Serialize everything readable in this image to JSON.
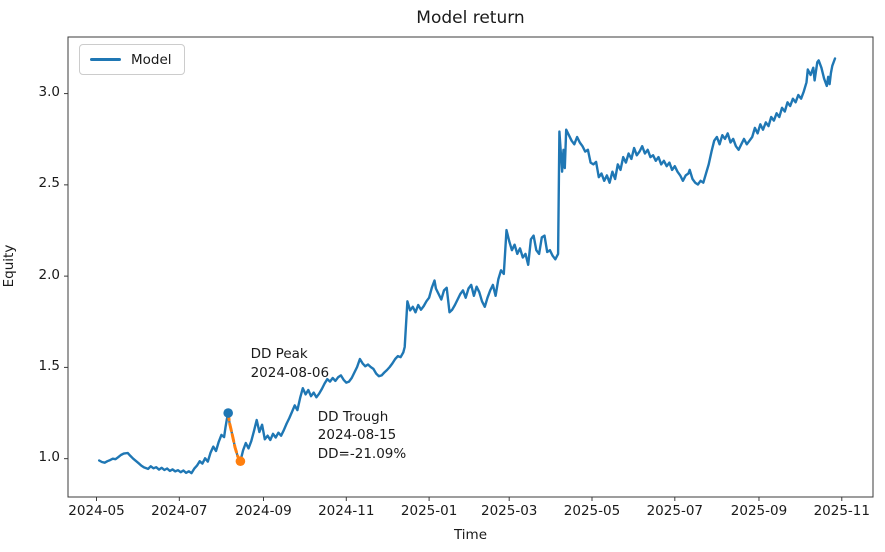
{
  "chart_data": {
    "type": "line",
    "title": "Model return",
    "xlabel": "Time",
    "ylabel": "Equity",
    "grid": false,
    "x_unit": "days since 2024-05-01",
    "xlim": [
      -21,
      572
    ],
    "ylim": [
      0.79,
      3.31
    ],
    "x_ticks": [
      {
        "d": 0,
        "label": "2024-05"
      },
      {
        "d": 61,
        "label": "2024-07"
      },
      {
        "d": 123,
        "label": "2024-09"
      },
      {
        "d": 184,
        "label": "2024-11"
      },
      {
        "d": 245,
        "label": "2025-01"
      },
      {
        "d": 304,
        "label": "2025-03"
      },
      {
        "d": 365,
        "label": "2025-05"
      },
      {
        "d": 426,
        "label": "2025-07"
      },
      {
        "d": 488,
        "label": "2025-09"
      },
      {
        "d": 549,
        "label": "2025-11"
      }
    ],
    "y_ticks": [
      {
        "v": 1.0,
        "label": "1.0"
      },
      {
        "v": 1.5,
        "label": "1.5"
      },
      {
        "v": 2.0,
        "label": "2.0"
      },
      {
        "v": 2.5,
        "label": "2.5"
      },
      {
        "v": 3.0,
        "label": "3.0"
      }
    ],
    "legend": {
      "position": "upper left",
      "entries": [
        {
          "label": "Model",
          "color": "#1f77b4"
        }
      ]
    },
    "colors": {
      "line": "#1f77b4",
      "drawdown": "#ff7f0e",
      "text": "#1a1a1a",
      "spine": "#3b3b3b"
    },
    "series": [
      {
        "name": "Model",
        "color": "#1f77b4",
        "points": [
          [
            2,
            0.99
          ],
          [
            4,
            0.982
          ],
          [
            6,
            0.978
          ],
          [
            8,
            0.986
          ],
          [
            10,
            0.992
          ],
          [
            12,
            1.0
          ],
          [
            14,
            0.997
          ],
          [
            16,
            1.008
          ],
          [
            18,
            1.02
          ],
          [
            20,
            1.028
          ],
          [
            23,
            1.031
          ],
          [
            25,
            1.015
          ],
          [
            27,
            1.0
          ],
          [
            29,
            0.988
          ],
          [
            31,
            0.975
          ],
          [
            33,
            0.962
          ],
          [
            35,
            0.952
          ],
          [
            38,
            0.944
          ],
          [
            40,
            0.958
          ],
          [
            42,
            0.947
          ],
          [
            44,
            0.953
          ],
          [
            46,
            0.94
          ],
          [
            48,
            0.95
          ],
          [
            50,
            0.938
          ],
          [
            52,
            0.946
          ],
          [
            54,
            0.933
          ],
          [
            56,
            0.941
          ],
          [
            58,
            0.93
          ],
          [
            60,
            0.937
          ],
          [
            62,
            0.926
          ],
          [
            64,
            0.935
          ],
          [
            66,
            0.922
          ],
          [
            68,
            0.931
          ],
          [
            70,
            0.921
          ],
          [
            72,
            0.945
          ],
          [
            74,
            0.962
          ],
          [
            76,
            0.986
          ],
          [
            78,
            0.973
          ],
          [
            80,
            1.002
          ],
          [
            82,
            0.984
          ],
          [
            84,
            1.032
          ],
          [
            86,
            1.066
          ],
          [
            88,
            1.042
          ],
          [
            90,
            1.092
          ],
          [
            92,
            1.13
          ],
          [
            94,
            1.118
          ],
          [
            95,
            1.172
          ],
          [
            96,
            1.214
          ],
          [
            97,
            1.25
          ],
          [
            98,
            1.196
          ],
          [
            100,
            1.131
          ],
          [
            102,
            1.062
          ],
          [
            104,
            1.013
          ],
          [
            106,
            0.986
          ],
          [
            108,
            1.046
          ],
          [
            110,
            1.086
          ],
          [
            112,
            1.056
          ],
          [
            114,
            1.096
          ],
          [
            116,
            1.152
          ],
          [
            118,
            1.212
          ],
          [
            120,
            1.146
          ],
          [
            122,
            1.186
          ],
          [
            124,
            1.106
          ],
          [
            126,
            1.126
          ],
          [
            128,
            1.102
          ],
          [
            130,
            1.136
          ],
          [
            132,
            1.116
          ],
          [
            134,
            1.142
          ],
          [
            136,
            1.126
          ],
          [
            138,
            1.156
          ],
          [
            140,
            1.192
          ],
          [
            142,
            1.222
          ],
          [
            144,
            1.256
          ],
          [
            146,
            1.292
          ],
          [
            148,
            1.266
          ],
          [
            150,
            1.332
          ],
          [
            152,
            1.386
          ],
          [
            154,
            1.352
          ],
          [
            156,
            1.376
          ],
          [
            158,
            1.342
          ],
          [
            160,
            1.362
          ],
          [
            162,
            1.336
          ],
          [
            164,
            1.356
          ],
          [
            166,
            1.382
          ],
          [
            168,
            1.412
          ],
          [
            170,
            1.436
          ],
          [
            172,
            1.422
          ],
          [
            174,
            1.442
          ],
          [
            176,
            1.426
          ],
          [
            178,
            1.446
          ],
          [
            180,
            1.456
          ],
          [
            182,
            1.432
          ],
          [
            184,
            1.416
          ],
          [
            186,
            1.422
          ],
          [
            188,
            1.442
          ],
          [
            190,
            1.472
          ],
          [
            192,
            1.502
          ],
          [
            194,
            1.546
          ],
          [
            196,
            1.522
          ],
          [
            198,
            1.506
          ],
          [
            200,
            1.516
          ],
          [
            202,
            1.502
          ],
          [
            204,
            1.492
          ],
          [
            206,
            1.466
          ],
          [
            208,
            1.452
          ],
          [
            210,
            1.456
          ],
          [
            212,
            1.472
          ],
          [
            214,
            1.486
          ],
          [
            216,
            1.502
          ],
          [
            218,
            1.522
          ],
          [
            220,
            1.546
          ],
          [
            222,
            1.562
          ],
          [
            224,
            1.556
          ],
          [
            226,
            1.582
          ],
          [
            227,
            1.612
          ],
          [
            229,
            1.862
          ],
          [
            231,
            1.812
          ],
          [
            233,
            1.832
          ],
          [
            235,
            1.802
          ],
          [
            237,
            1.842
          ],
          [
            239,
            1.816
          ],
          [
            241,
            1.836
          ],
          [
            243,
            1.862
          ],
          [
            245,
            1.882
          ],
          [
            247,
            1.936
          ],
          [
            249,
            1.976
          ],
          [
            250,
            1.932
          ],
          [
            252,
            1.902
          ],
          [
            254,
            1.872
          ],
          [
            256,
            1.922
          ],
          [
            258,
            1.936
          ],
          [
            260,
            1.802
          ],
          [
            262,
            1.816
          ],
          [
            264,
            1.842
          ],
          [
            266,
            1.872
          ],
          [
            268,
            1.902
          ],
          [
            270,
            1.922
          ],
          [
            272,
            1.882
          ],
          [
            274,
            1.932
          ],
          [
            276,
            1.952
          ],
          [
            278,
            1.892
          ],
          [
            280,
            1.942
          ],
          [
            282,
            1.912
          ],
          [
            284,
            1.862
          ],
          [
            286,
            1.832
          ],
          [
            288,
            1.882
          ],
          [
            290,
            1.922
          ],
          [
            292,
            1.952
          ],
          [
            294,
            1.892
          ],
          [
            296,
            1.982
          ],
          [
            298,
            2.032
          ],
          [
            300,
            2.012
          ],
          [
            302,
            2.252
          ],
          [
            304,
            2.192
          ],
          [
            306,
            2.142
          ],
          [
            308,
            2.172
          ],
          [
            310,
            2.122
          ],
          [
            312,
            2.152
          ],
          [
            314,
            2.102
          ],
          [
            316,
            2.122
          ],
          [
            318,
            2.062
          ],
          [
            320,
            2.202
          ],
          [
            322,
            2.222
          ],
          [
            324,
            2.142
          ],
          [
            326,
            2.122
          ],
          [
            328,
            2.212
          ],
          [
            330,
            2.222
          ],
          [
            332,
            2.132
          ],
          [
            334,
            2.142
          ],
          [
            336,
            2.112
          ],
          [
            338,
            2.092
          ],
          [
            340,
            2.122
          ],
          [
            341,
            2.792
          ],
          [
            343,
            2.572
          ],
          [
            344,
            2.692
          ],
          [
            345,
            2.592
          ],
          [
            346,
            2.802
          ],
          [
            348,
            2.772
          ],
          [
            350,
            2.742
          ],
          [
            352,
            2.722
          ],
          [
            354,
            2.762
          ],
          [
            356,
            2.732
          ],
          [
            358,
            2.712
          ],
          [
            360,
            2.682
          ],
          [
            362,
            2.692
          ],
          [
            364,
            2.622
          ],
          [
            366,
            2.612
          ],
          [
            368,
            2.626
          ],
          [
            370,
            2.542
          ],
          [
            372,
            2.562
          ],
          [
            374,
            2.522
          ],
          [
            376,
            2.552
          ],
          [
            378,
            2.512
          ],
          [
            380,
            2.572
          ],
          [
            382,
            2.532
          ],
          [
            384,
            2.612
          ],
          [
            386,
            2.582
          ],
          [
            388,
            2.652
          ],
          [
            390,
            2.622
          ],
          [
            392,
            2.672
          ],
          [
            394,
            2.642
          ],
          [
            396,
            2.702
          ],
          [
            398,
            2.662
          ],
          [
            400,
            2.682
          ],
          [
            402,
            2.712
          ],
          [
            404,
            2.672
          ],
          [
            406,
            2.692
          ],
          [
            408,
            2.652
          ],
          [
            410,
            2.662
          ],
          [
            412,
            2.632
          ],
          [
            414,
            2.652
          ],
          [
            416,
            2.612
          ],
          [
            418,
            2.632
          ],
          [
            420,
            2.602
          ],
          [
            422,
            2.622
          ],
          [
            424,
            2.582
          ],
          [
            426,
            2.602
          ],
          [
            428,
            2.572
          ],
          [
            430,
            2.552
          ],
          [
            432,
            2.522
          ],
          [
            434,
            2.552
          ],
          [
            436,
            2.562
          ],
          [
            437,
            2.582
          ],
          [
            439,
            2.532
          ],
          [
            441,
            2.512
          ],
          [
            443,
            2.502
          ],
          [
            445,
            2.522
          ],
          [
            447,
            2.512
          ],
          [
            449,
            2.562
          ],
          [
            451,
            2.612
          ],
          [
            453,
            2.682
          ],
          [
            455,
            2.742
          ],
          [
            457,
            2.762
          ],
          [
            459,
            2.722
          ],
          [
            461,
            2.772
          ],
          [
            463,
            2.752
          ],
          [
            465,
            2.782
          ],
          [
            467,
            2.732
          ],
          [
            469,
            2.752
          ],
          [
            471,
            2.712
          ],
          [
            473,
            2.692
          ],
          [
            475,
            2.722
          ],
          [
            477,
            2.752
          ],
          [
            479,
            2.722
          ],
          [
            481,
            2.742
          ],
          [
            483,
            2.762
          ],
          [
            485,
            2.812
          ],
          [
            487,
            2.782
          ],
          [
            489,
            2.832
          ],
          [
            491,
            2.802
          ],
          [
            493,
            2.842
          ],
          [
            495,
            2.822
          ],
          [
            497,
            2.872
          ],
          [
            499,
            2.852
          ],
          [
            501,
            2.892
          ],
          [
            503,
            2.872
          ],
          [
            505,
            2.922
          ],
          [
            507,
            2.902
          ],
          [
            509,
            2.952
          ],
          [
            511,
            2.932
          ],
          [
            513,
            2.972
          ],
          [
            515,
            2.952
          ],
          [
            517,
            2.992
          ],
          [
            519,
            2.972
          ],
          [
            521,
            3.012
          ],
          [
            523,
            3.062
          ],
          [
            524,
            3.132
          ],
          [
            526,
            3.102
          ],
          [
            528,
            3.142
          ],
          [
            529,
            3.072
          ],
          [
            531,
            3.172
          ],
          [
            532,
            3.182
          ],
          [
            534,
            3.142
          ],
          [
            536,
            3.082
          ],
          [
            538,
            3.042
          ],
          [
            539,
            3.092
          ],
          [
            540,
            3.052
          ],
          [
            541,
            3.112
          ],
          [
            542,
            3.152
          ],
          [
            544,
            3.192
          ]
        ]
      }
    ],
    "drawdown": {
      "color": "#ff7f0e",
      "style": "dashed",
      "peak": {
        "date": "2024-08-06",
        "d": 97,
        "value": 1.25,
        "marker_color": "#1f77b4"
      },
      "trough": {
        "date": "2024-08-15",
        "d": 106,
        "value": 0.986,
        "marker_color": "#ff7f0e"
      },
      "dd_pct": "-21.09%",
      "segment": [
        [
          97,
          1.25
        ],
        [
          98,
          1.196
        ],
        [
          100,
          1.131
        ],
        [
          102,
          1.062
        ],
        [
          104,
          1.013
        ],
        [
          106,
          0.986
        ]
      ]
    },
    "annotations": [
      {
        "id": "dd-peak",
        "lines": [
          "DD Peak",
          "2024-08-06"
        ],
        "anchor_d": 113.5,
        "anchor_v": 1.62
      },
      {
        "id": "dd-trough",
        "lines": [
          "DD Trough",
          "2024-08-15",
          "DD=-21.09%"
        ],
        "anchor_d": 163,
        "anchor_v": 1.28
      }
    ]
  }
}
